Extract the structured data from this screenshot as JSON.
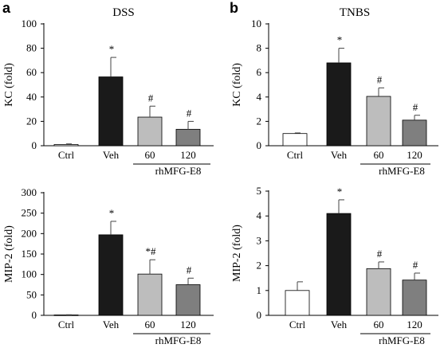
{
  "panel_letters": [
    "a",
    "b"
  ],
  "colors": {
    "Ctrl": "#ffffff",
    "Veh": "#1a1a1a",
    "60": "#bdbdbd",
    "120": "#7f7f7f"
  },
  "chart_data": [
    {
      "type": "bar",
      "title": "DSS",
      "ylabel": "KC (fold)",
      "categories": [
        "Ctrl",
        "Veh",
        "60",
        "120"
      ],
      "values": [
        1,
        56.5,
        23.5,
        13.5
      ],
      "errors": [
        0.5,
        16,
        9,
        6.5
      ],
      "annotations": [
        "",
        "*",
        "#",
        "#"
      ],
      "ylim": [
        0,
        100
      ],
      "yticks": [
        0,
        20,
        40,
        60,
        80,
        100
      ],
      "group_label": "rhMFG-E8",
      "grid": false
    },
    {
      "type": "bar",
      "title": "TNBS",
      "ylabel": "KC (fold)",
      "categories": [
        "Ctrl",
        "Veh",
        "60",
        "120"
      ],
      "values": [
        1,
        6.8,
        4.05,
        2.1
      ],
      "errors": [
        0.05,
        1.2,
        0.7,
        0.4
      ],
      "annotations": [
        "",
        "*",
        "#",
        "#"
      ],
      "ylim": [
        0,
        10
      ],
      "yticks": [
        0,
        2,
        4,
        6,
        8,
        10
      ],
      "group_label": "rhMFG-E8",
      "grid": false
    },
    {
      "type": "bar",
      "title": "",
      "ylabel": "MIP-2 (fold)",
      "categories": [
        "Ctrl",
        "Veh",
        "60",
        "120"
      ],
      "values": [
        1,
        197,
        101,
        75
      ],
      "errors": [
        0.5,
        33,
        35,
        16
      ],
      "annotations": [
        "",
        "*",
        "*#",
        "#"
      ],
      "ylim": [
        0,
        300
      ],
      "yticks": [
        0,
        50,
        100,
        150,
        200,
        250,
        300
      ],
      "group_label": "rhMFG-E8",
      "grid": false
    },
    {
      "type": "bar",
      "title": "",
      "ylabel": "MIP-2 (fold)",
      "categories": [
        "Ctrl",
        "Veh",
        "60",
        "120"
      ],
      "values": [
        1,
        4.1,
        1.88,
        1.42
      ],
      "errors": [
        0.35,
        0.55,
        0.27,
        0.28
      ],
      "annotations": [
        "",
        "*",
        "#",
        "#"
      ],
      "ylim": [
        0,
        5
      ],
      "yticks": [
        0,
        1,
        2,
        3,
        4,
        5
      ],
      "group_label": "rhMFG-E8",
      "grid": false
    }
  ]
}
